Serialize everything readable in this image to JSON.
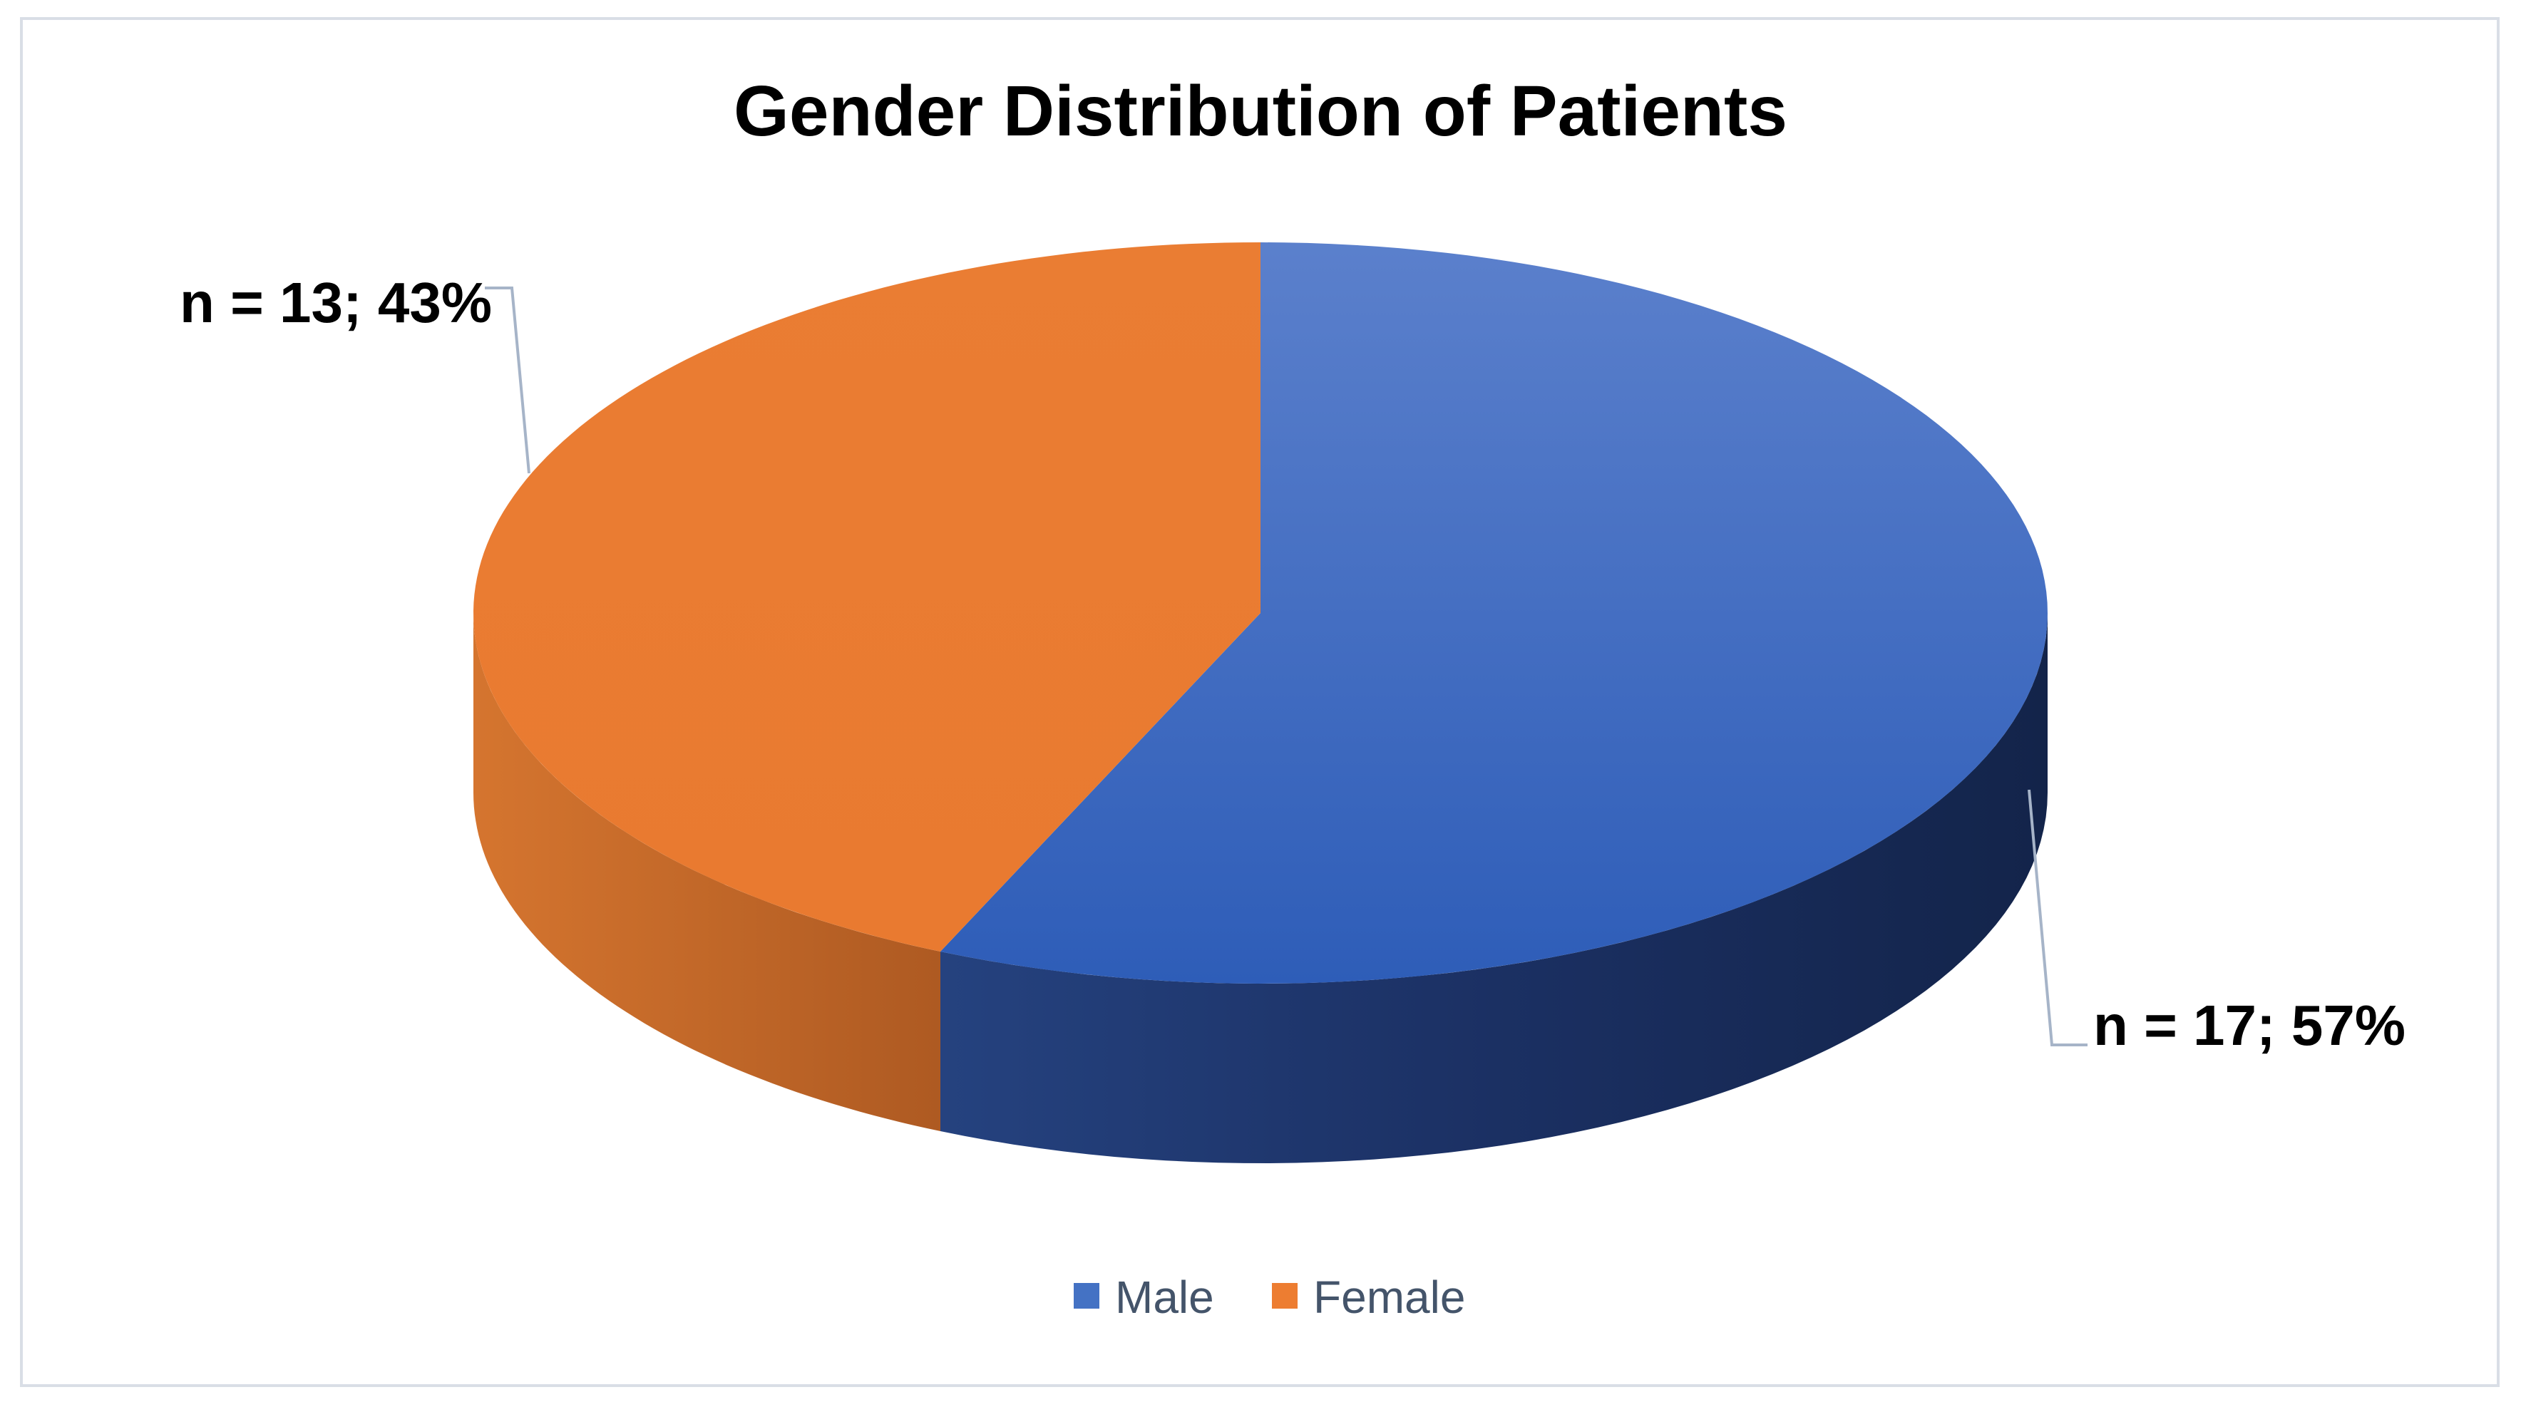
{
  "chart_data": {
    "type": "pie",
    "style": "3d",
    "title": "Gender Distribution of Patients",
    "legend_position": "bottom",
    "slices": [
      {
        "name": "Male",
        "count": 17,
        "percent": 57,
        "label": "n = 17; 57%",
        "color": "#3c6cc8",
        "side_color": "#1a2d5c"
      },
      {
        "name": "Female",
        "count": 13,
        "percent": 43,
        "label": "n = 13; 43%",
        "color": "#ea7d33",
        "side_color": "#b95f22"
      }
    ]
  }
}
